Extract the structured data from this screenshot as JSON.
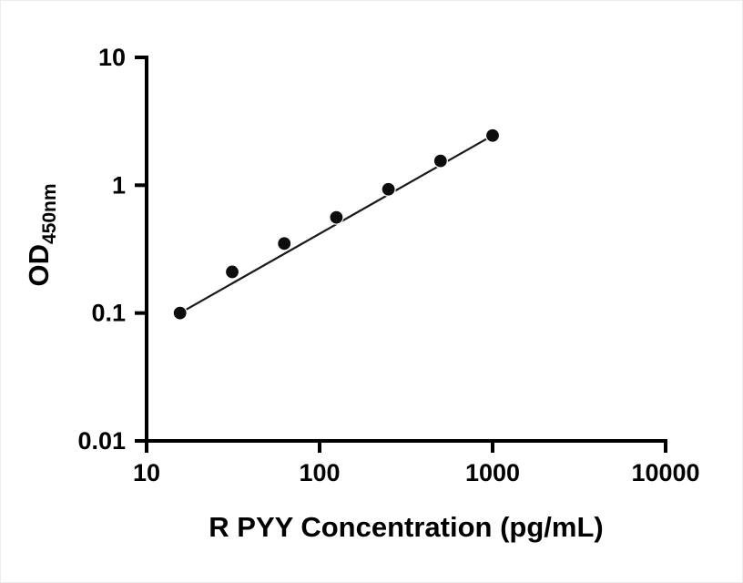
{
  "figure": {
    "background": "#ffffff"
  },
  "chart_data": {
    "type": "scatter",
    "x": [
      15.6,
      31.25,
      62.5,
      125,
      250,
      500,
      1000
    ],
    "y": [
      0.1,
      0.21,
      0.35,
      0.56,
      0.93,
      1.55,
      2.45
    ],
    "title": "",
    "xlabel": "R PYY Concentration (pg/mL)",
    "ylabel_main": "OD",
    "ylabel_sub": "450nm",
    "x_scale": "log",
    "y_scale": "log",
    "xlim": [
      10,
      10000
    ],
    "ylim": [
      0.01,
      10
    ],
    "x_ticks": [
      10,
      100,
      1000,
      10000
    ],
    "x_tick_labels": [
      "10",
      "100",
      "1000",
      "10000"
    ],
    "y_ticks": [
      0.01,
      0.1,
      1,
      10
    ],
    "y_tick_labels": [
      "0.01",
      "0.1",
      "1",
      "10"
    ],
    "grid": false,
    "legend": null,
    "trendline": true,
    "marker_shape": "circle",
    "marker_color": "#0d0d0d",
    "marker_outline": "#ffffff",
    "line_color": "#1a1a1a",
    "axis_color": "#000000"
  }
}
